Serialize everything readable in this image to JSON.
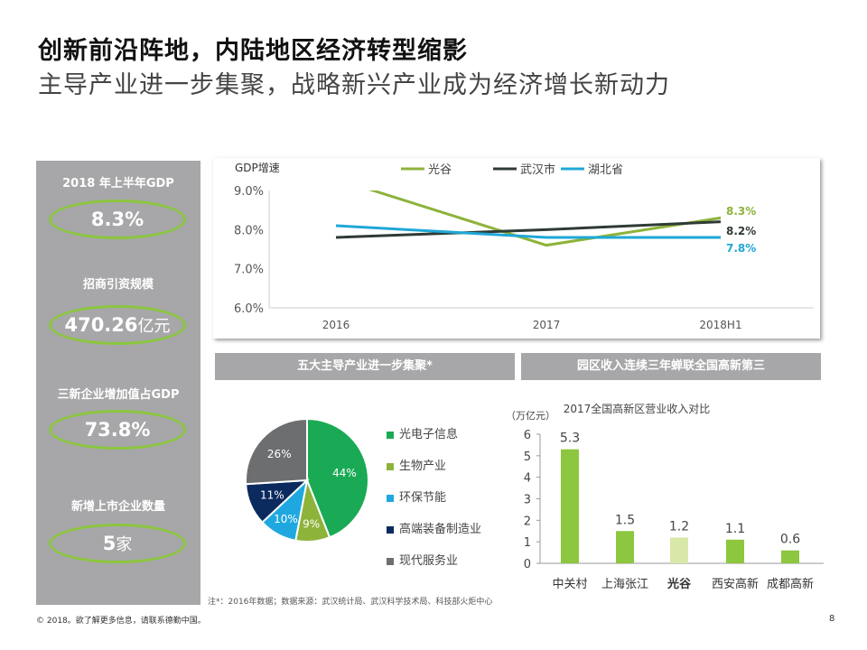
{
  "title": "创新前沿阵地，内陆地区经济转型缩影",
  "subtitle": "主导产业进一步集聚，战略新兴产业成为经济增长新动力",
  "kpis": [
    {
      "label": "2018 年上半年GDP",
      "value": "8.3%",
      "unit": ""
    },
    {
      "label": "招商引资规模",
      "value": "470.26",
      "unit": "亿元"
    },
    {
      "label": "三新企业增加值占GDP",
      "value": "73.8%",
      "unit": ""
    },
    {
      "label": "新增上市企业数量",
      "value": "5",
      "unit": "家"
    }
  ],
  "section_headers": [
    "五大主导产业进一步集聚*",
    "园区收入连续三年蝉联全国高新第三"
  ],
  "colors": {
    "guanggu": "#8db33a",
    "wuhan": "#2f3b35",
    "hubei": "#1fa8d6",
    "accent": "#8cc63f",
    "panel": "#a7a7a9"
  },
  "chart_data": [
    {
      "type": "line",
      "ylabel": "GDP增速",
      "categories": [
        "2016",
        "2017",
        "2018H1"
      ],
      "ylim": [
        6.0,
        9.0
      ],
      "yticks": [
        "6.0%",
        "7.0%",
        "8.0%",
        "9.0%"
      ],
      "legend_position": "top",
      "series": [
        {
          "name": "光谷",
          "values": [
            9.3,
            7.6,
            8.3
          ],
          "end_label": "8.3%"
        },
        {
          "name": "武汉市",
          "values": [
            7.8,
            8.0,
            8.2
          ],
          "end_label": "8.2%"
        },
        {
          "name": "湖北省",
          "values": [
            8.1,
            7.8,
            7.8
          ],
          "end_label": "7.8%"
        }
      ]
    },
    {
      "type": "pie",
      "categories": [
        "光电子信息",
        "生物产业",
        "环保节能",
        "高端装备制造业",
        "现代服务业"
      ],
      "values": [
        44,
        9,
        10,
        11,
        26
      ],
      "labels": [
        "44%",
        "9%",
        "10%",
        "11%",
        "26%"
      ],
      "colors": [
        "#1aaa55",
        "#8db33a",
        "#1fa8e0",
        "#0b2a5e",
        "#6d6e70"
      ],
      "legend_position": "right"
    },
    {
      "type": "bar",
      "title": "2017全国高新区营业收入对比",
      "ylabel": "（万亿元）",
      "categories": [
        "中关村",
        "上海张江",
        "光谷",
        "西安高新",
        "成都高新"
      ],
      "values": [
        5.3,
        1.5,
        1.2,
        1.1,
        0.6
      ],
      "ylim": [
        0,
        6
      ],
      "yticks": [
        "0",
        "1",
        "2",
        "3",
        "4",
        "5",
        "6"
      ],
      "colors": [
        "#8dc63f",
        "#8dc63f",
        "#d7e8a8",
        "#8dc63f",
        "#8dc63f"
      ]
    }
  ],
  "footnote": "注*：2016年数据；数据来源：武汉统计局、武汉科学技术局、科技部火炬中心",
  "copyright": "© 2018。欲了解更多信息，请联系德勤中国。",
  "page": "8"
}
